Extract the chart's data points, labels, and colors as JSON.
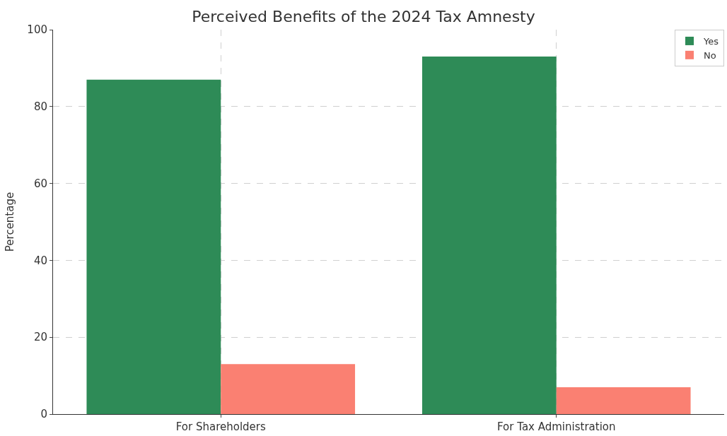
{
  "chart_data": {
    "type": "bar",
    "title": "Perceived Benefits of the 2024 Tax Amnesty",
    "ylabel": "Percentage",
    "categories": [
      "For Shareholders",
      "For Tax Administration"
    ],
    "series": [
      {
        "name": "Yes",
        "color": "#2e8b57",
        "values": [
          87,
          93
        ]
      },
      {
        "name": "No",
        "color": "#fa8072",
        "values": [
          13,
          7
        ]
      }
    ],
    "ylim": [
      0,
      100
    ],
    "yticks": [
      0,
      20,
      40,
      60,
      80,
      100
    ],
    "grid": true,
    "legend": "top right"
  }
}
